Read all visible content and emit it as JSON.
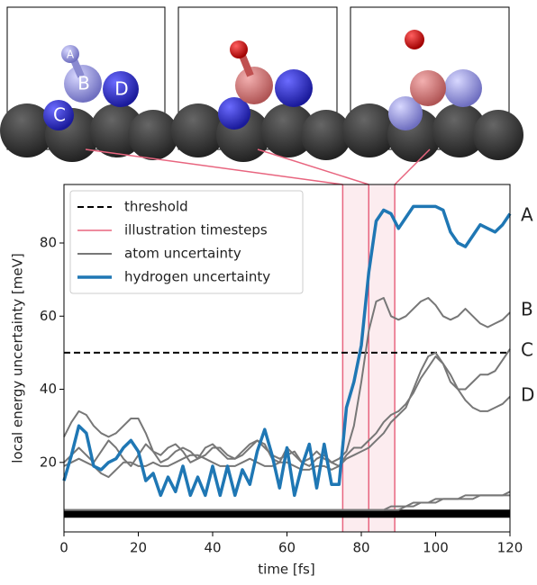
{
  "inset_labels": [
    "A",
    "B",
    "C",
    "D"
  ],
  "chart_data": {
    "type": "line",
    "x_label": "time [fs]",
    "y_label": "local energy uncertainty [meV]",
    "xlim": [
      0,
      120
    ],
    "xticks": [
      0,
      20,
      40,
      60,
      80,
      100,
      120
    ],
    "ylim": [
      1,
      96
    ],
    "yticks": [
      20,
      40,
      60,
      80
    ],
    "legend": "upper left",
    "threshold": {
      "name": "threshold",
      "value": 50,
      "color": "#000000"
    },
    "timesteps": {
      "name": "illustration timesteps",
      "values": [
        75,
        82,
        89
      ],
      "color": "#e8657f"
    },
    "annotations": [
      "A",
      "B",
      "C",
      "D"
    ],
    "x": [
      0,
      2,
      4,
      6,
      8,
      10,
      12,
      14,
      16,
      18,
      20,
      22,
      24,
      26,
      28,
      30,
      32,
      34,
      36,
      38,
      40,
      42,
      44,
      46,
      48,
      50,
      52,
      54,
      56,
      58,
      60,
      62,
      64,
      66,
      68,
      70,
      72,
      74,
      76,
      78,
      80,
      82,
      84,
      86,
      88,
      90,
      92,
      94,
      96,
      98,
      100,
      102,
      104,
      106,
      108,
      110,
      112,
      114,
      116,
      118,
      120
    ],
    "series": [
      {
        "color": "#000000",
        "values": [
          6,
          6,
          6,
          6,
          6,
          6,
          6,
          6,
          6,
          6,
          6,
          6,
          6,
          6,
          6,
          6,
          6,
          6,
          6,
          6,
          6,
          6,
          6,
          6,
          6,
          6,
          6,
          6,
          6,
          6,
          6,
          6,
          6,
          6,
          6,
          6,
          6,
          6,
          6,
          6,
          6,
          6,
          6,
          6,
          6,
          6,
          6,
          6,
          6,
          6,
          6,
          6,
          6,
          6,
          6,
          6,
          6,
          6,
          6,
          6,
          6
        ]
      },
      {
        "name": "atom uncertainty",
        "color": "#777777",
        "values": [
          [
            27,
            31,
            34,
            33,
            30,
            28,
            27,
            28,
            30,
            32,
            32,
            28,
            23,
            22,
            24,
            25,
            23,
            20,
            21,
            24,
            25,
            23,
            21,
            21,
            22,
            24,
            26,
            25,
            21,
            20,
            24,
            22,
            20,
            21,
            23,
            21,
            20,
            21,
            23,
            30,
            42,
            56,
            64,
            65,
            60,
            59,
            60,
            62,
            64,
            65,
            63,
            60,
            59,
            60,
            62,
            60,
            58,
            57,
            58,
            59,
            61
          ],
          [
            19,
            20,
            21,
            20,
            19,
            17,
            16,
            18,
            20,
            20,
            19,
            19,
            20,
            19,
            19,
            20,
            21,
            22,
            22,
            21,
            20,
            19,
            19,
            19,
            20,
            21,
            20,
            19,
            19,
            20,
            20,
            19,
            18,
            18,
            19,
            19,
            18,
            19,
            21,
            22,
            23,
            24,
            26,
            28,
            31,
            33,
            35,
            40,
            45,
            49,
            50,
            47,
            42,
            40,
            40,
            42,
            44,
            44,
            45,
            48,
            51
          ],
          [
            20,
            22,
            24,
            22,
            20,
            23,
            26,
            24,
            21,
            19,
            22,
            25,
            23,
            20,
            21,
            23,
            24,
            23,
            21,
            22,
            24,
            24,
            22,
            21,
            23,
            25,
            26,
            24,
            22,
            21,
            22,
            23,
            20,
            19,
            21,
            22,
            20,
            19,
            22,
            24,
            24,
            26,
            28,
            31,
            33,
            34,
            36,
            39,
            43,
            46,
            49,
            47,
            44,
            40,
            37,
            35,
            34,
            34,
            35,
            36,
            38
          ],
          [
            7,
            7,
            7,
            7,
            7,
            7,
            7,
            7,
            7,
            7,
            7,
            7,
            7,
            7,
            7,
            7,
            7,
            7,
            7,
            7,
            7,
            7,
            7,
            7,
            7,
            7,
            7,
            7,
            7,
            7,
            7,
            7,
            7,
            7,
            7,
            7,
            7,
            7,
            7,
            7,
            7,
            7,
            7,
            7,
            8,
            8,
            8,
            9,
            9,
            9,
            10,
            10,
            10,
            10,
            11,
            11,
            11,
            11,
            11,
            11,
            11
          ],
          [
            7,
            7,
            7,
            7,
            7,
            7,
            7,
            7,
            7,
            7,
            7,
            7,
            7,
            7,
            7,
            7,
            7,
            7,
            7,
            7,
            7,
            7,
            7,
            7,
            7,
            7,
            7,
            7,
            7,
            7,
            7,
            7,
            7,
            7,
            7,
            7,
            7,
            7,
            7,
            7,
            7,
            7,
            7,
            7,
            7,
            7,
            8,
            8,
            9,
            9,
            9,
            10,
            10,
            10,
            10,
            10,
            11,
            11,
            11,
            11,
            12
          ]
        ]
      },
      {
        "name": "hydrogen uncertainty",
        "color": "#1f77b4",
        "values": [
          15,
          22,
          30,
          28,
          19,
          18,
          20,
          21,
          24,
          26,
          23,
          15,
          17,
          11,
          16,
          12,
          19,
          11,
          16,
          11,
          19,
          11,
          19,
          11,
          18,
          14,
          23,
          29,
          22,
          13,
          24,
          11,
          19,
          25,
          13,
          25,
          14,
          14,
          35,
          42,
          52,
          72,
          86,
          89,
          88,
          84,
          87,
          90,
          90,
          90,
          90,
          89,
          83,
          80,
          79,
          82,
          85,
          84,
          83,
          85,
          88
        ]
      }
    ]
  }
}
